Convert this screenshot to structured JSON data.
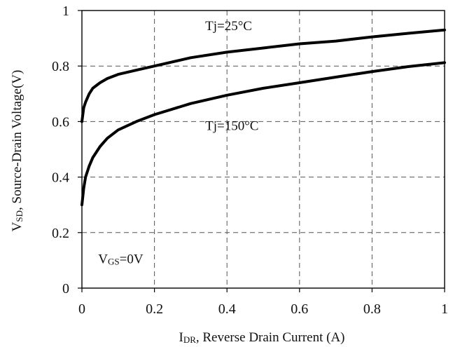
{
  "chart_data": {
    "type": "line",
    "xlabel": {
      "main": "I",
      "sub": "DR",
      "rest": ", Reverse Drain Current (A)"
    },
    "ylabel": {
      "main": "V",
      "sub": "SD",
      "rest": ", Source-Drain Voltage(V)"
    },
    "xlim": [
      0,
      1
    ],
    "ylim": [
      0,
      1
    ],
    "xticks": [
      0,
      0.2,
      0.4,
      0.6,
      0.8,
      1
    ],
    "xtick_labels": [
      "0",
      "0.2",
      "0.4",
      "0.6",
      "0.8",
      "1"
    ],
    "yticks": [
      0,
      0.2,
      0.4,
      0.6,
      0.8,
      1
    ],
    "ytick_labels": [
      "0",
      "0.2",
      "0.4",
      "0.6",
      "0.8",
      "1"
    ],
    "grid": "dashed, both axes",
    "series": [
      {
        "name": "Tj=25°C",
        "x": [
          0,
          0.005,
          0.01,
          0.02,
          0.03,
          0.05,
          0.07,
          0.1,
          0.15,
          0.2,
          0.3,
          0.4,
          0.5,
          0.6,
          0.7,
          0.8,
          0.9,
          1.0
        ],
        "y": [
          0.6,
          0.65,
          0.67,
          0.7,
          0.72,
          0.74,
          0.755,
          0.77,
          0.785,
          0.8,
          0.83,
          0.85,
          0.865,
          0.88,
          0.89,
          0.905,
          0.918,
          0.93
        ]
      },
      {
        "name": "Tj=150°C",
        "x": [
          0,
          0.005,
          0.01,
          0.02,
          0.03,
          0.05,
          0.07,
          0.1,
          0.15,
          0.2,
          0.3,
          0.4,
          0.5,
          0.6,
          0.7,
          0.8,
          0.9,
          1.0
        ],
        "y": [
          0.3,
          0.36,
          0.4,
          0.44,
          0.47,
          0.51,
          0.54,
          0.57,
          0.6,
          0.625,
          0.665,
          0.695,
          0.72,
          0.74,
          0.76,
          0.78,
          0.798,
          0.812
        ]
      }
    ],
    "annotations": [
      {
        "text": "Tj=25°C",
        "x": 0.34,
        "y": 0.945
      },
      {
        "text": "Tj=150°C",
        "x": 0.34,
        "y": 0.585
      },
      {
        "main": "V",
        "sub": "GS",
        "rest": "=0V",
        "x": 0.045,
        "y": 0.105
      }
    ],
    "colors": {
      "line": "#000000",
      "grid": "#555555",
      "axis": "#000000"
    }
  }
}
